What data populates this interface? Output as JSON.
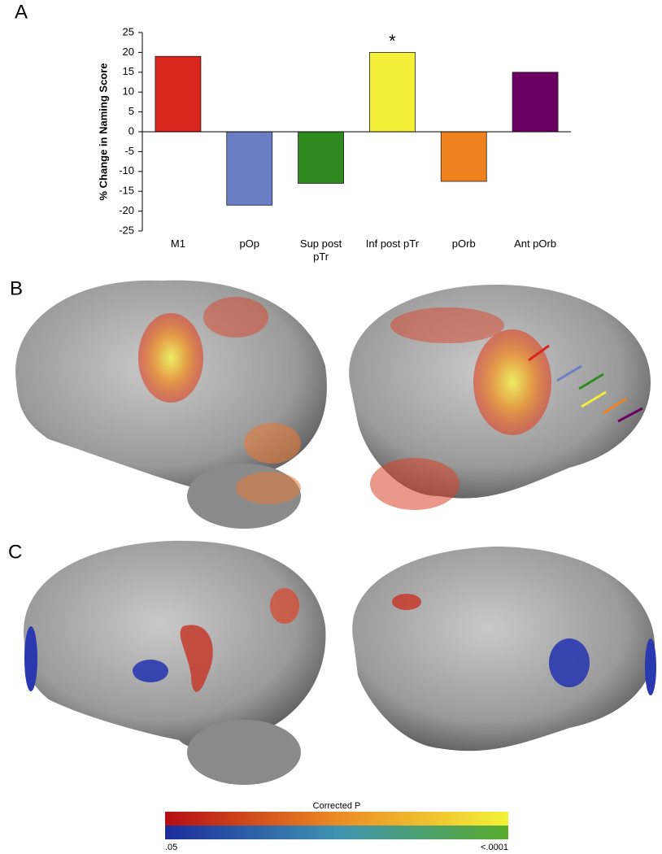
{
  "chart_data": {
    "type": "bar",
    "ylabel": "% Change in Naming Score",
    "categories": [
      "M1",
      "pOp",
      "Sup post\npTr",
      "Inf post pTr",
      "pOrb",
      "Ant pOrb"
    ],
    "values": [
      19,
      -18.5,
      -13,
      20,
      -12.5,
      15
    ],
    "colors": [
      "#d9261c",
      "#6a7ec6",
      "#2e8a1e",
      "#f4f03a",
      "#f0821f",
      "#6b0062"
    ],
    "ylim": [
      -25,
      25
    ],
    "yticks": [
      -25,
      -20,
      -15,
      -10,
      -5,
      0,
      5,
      10,
      15,
      20,
      25
    ],
    "annotations": [
      {
        "text": "*",
        "category": "Inf post pTr"
      }
    ]
  },
  "panel_labels": [
    "A",
    "B",
    "C"
  ],
  "colorbar": {
    "title": "Corrected P",
    "min_label": ".05",
    "max_label": "<.0001"
  }
}
